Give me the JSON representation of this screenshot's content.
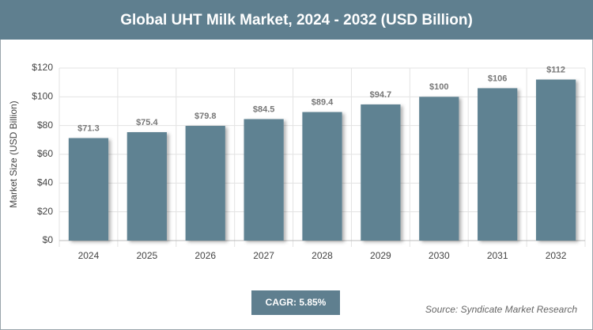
{
  "chart_data": {
    "type": "bar",
    "title": "Global UHT Milk Market, 2024 - 2032 (USD Billion)",
    "y_label": "Market Size (USD Billion)",
    "categories": [
      "2024",
      "2025",
      "2026",
      "2027",
      "2028",
      "2029",
      "2030",
      "2031",
      "2032"
    ],
    "values": [
      71.3,
      75.4,
      79.8,
      84.5,
      89.4,
      94.7,
      100,
      106,
      112
    ],
    "value_labels": [
      "$71.3",
      "$75.4",
      "$79.8",
      "$84.5",
      "$89.4",
      "$94.7",
      "$100",
      "$106",
      "$112"
    ],
    "color": "#5f8292",
    "ylim": [
      0,
      120
    ],
    "yticks": [
      {
        "value": 0,
        "label": "$0"
      },
      {
        "value": 20,
        "label": "$20"
      },
      {
        "value": 40,
        "label": "$40"
      },
      {
        "value": 60,
        "label": "$60"
      },
      {
        "value": 80,
        "label": "$80"
      },
      {
        "value": 100,
        "label": "$100"
      },
      {
        "value": 120,
        "label": "$120"
      }
    ],
    "grid": true,
    "cagr": "CAGR: 5.85%",
    "source": "Source: Syndicate Market Research"
  }
}
